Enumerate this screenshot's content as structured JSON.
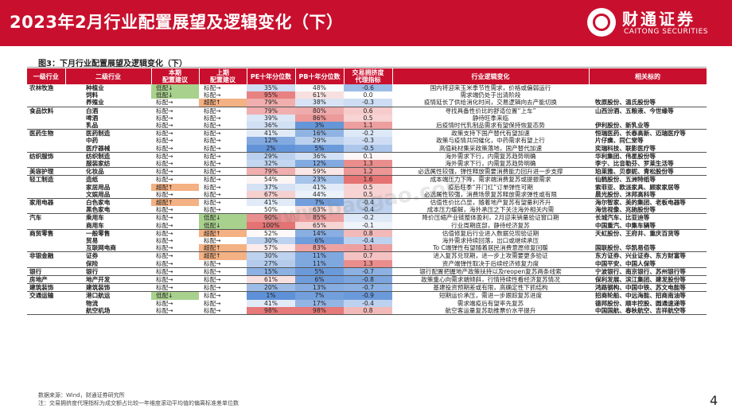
{
  "header": {
    "title": "2023年2月行业配置展望及逻辑变化（下）",
    "logo_cn": "财通证券",
    "logo_en": "CAITONG SECURITIES"
  },
  "figure": {
    "caption": "图3：下月行业配置展望及逻辑变化（下）",
    "columns": [
      "一级行业",
      "二级行业",
      "本期\n配置建议",
      "上期\n配置建议",
      "PE十年分位数",
      "PB十年分位数",
      "交易拥挤度\n代理指标",
      "行业逻辑变化",
      "相关标的"
    ],
    "rows": [
      {
        "l1": "农林牧渔",
        "l2": "种植业",
        "cur": "低配↓",
        "prev": "标配→",
        "pe": "35%",
        "pb": "48%",
        "cr": "-0.6",
        "logic": "国内将迎来玉米季节性需求，价格或偏弱运行",
        "stocks": ""
      },
      {
        "l1": "",
        "l2": "饲料",
        "cur": "低配↓",
        "prev": "标配→",
        "pe": "95%",
        "pb": "61%",
        "cr": "0.0",
        "logic": "需求端仍处于出清阶段",
        "stocks": ""
      },
      {
        "l1": "",
        "l2": "养殖业",
        "cur": "标配→",
        "prev": "超配↑",
        "pe": "79%",
        "pb": "38%",
        "cr": "-0.3",
        "logic": "疫情延长了供给消化时间，交易逻辑向去产能切换",
        "stocks": "牧原股份、温氏股份等"
      },
      {
        "l1": "食品饮料",
        "l2": "白酒",
        "cur": "标配→",
        "prev": "标配→",
        "pe": "79%",
        "pb": "80%",
        "cr": "0.6",
        "logic": "寻找具备性价比的舒适位置“上车”",
        "stocks": "山西汾酒、五粮液、今世缘等"
      },
      {
        "l1": "",
        "l2": "啤酒",
        "cur": "标配→",
        "prev": "标配→",
        "pe": "39%",
        "pb": "86%",
        "cr": "0.5",
        "logic": "静待旺季来临",
        "stocks": ""
      },
      {
        "l1": "",
        "l2": "乳品",
        "cur": "标配→",
        "prev": "标配→",
        "pe": "36%",
        "pb": "3%",
        "cr": "1.1",
        "logic": "后疫情时代乳制品需求有望保持恢复态势",
        "stocks": "伊利股份、新乳业等"
      },
      {
        "l1": "医药生物",
        "l2": "医药制造",
        "cur": "标配→",
        "prev": "标配→",
        "pe": "41%",
        "pb": "16%",
        "cr": "-0.2",
        "logic": "政策支持下国产替代有望加速",
        "stocks": "恒瑞医药、长春高新、迈瑞医疗等"
      },
      {
        "l1": "",
        "l2": "中药",
        "cur": "标配→",
        "prev": "标配→",
        "pe": "12%",
        "pb": "29%",
        "cr": "-0.3",
        "logic": "政策与疫情共同催化，中药需求有望上行",
        "stocks": "片仔癀、同仁堂等"
      },
      {
        "l1": "",
        "l2": "医疗器械",
        "cur": "标配→",
        "prev": "标配→",
        "pe": "2%",
        "pb": "5%",
        "cr": "-0.5",
        "logic": "高值耗材集采政策落地，国产替代加速",
        "stocks": "奕瑞科技、联影医疗等"
      },
      {
        "l1": "纺织服饰",
        "l2": "纺织制造",
        "cur": "标配→",
        "prev": "标配→",
        "pe": "29%",
        "pb": "36%",
        "cr": "0.1",
        "logic": "海外需求下行，内需复苏趋势明确",
        "stocks": "华利集团、伟星股份等"
      },
      {
        "l1": "",
        "l2": "服装家纺",
        "cur": "标配→",
        "prev": "标配→",
        "pe": "32%",
        "pb": "12%",
        "cr": "1.3",
        "logic": "海外需求下行，内需复苏趋势明确",
        "stocks": "李宁、比音勒芬、罗莱生活等"
      },
      {
        "l1": "美容护理",
        "l2": "化妆品",
        "cur": "标配→",
        "prev": "标配→",
        "pe": "79%",
        "pb": "59%",
        "cr": "1.2",
        "logic": "必选属性较强，弹性释放需要消费能力回升进一步支撑",
        "stocks": "珀莱雅、贝泰妮、青松股份等"
      },
      {
        "l1": "轻工制造",
        "l2": "造纸",
        "cur": "标配→",
        "prev": "标配→",
        "pe": "54%",
        "pb": "23%",
        "cr": "1.6",
        "logic": "成本端压力下降，需求端消费复苏或提振需求",
        "stocks": "仙鹤股份、五洲特纸等"
      },
      {
        "l1": "",
        "l2": "家居用品",
        "cur": "超配↑",
        "prev": "标配→",
        "pe": "37%",
        "pb": "41%",
        "cr": "0.5",
        "logic": "疫后旺季“开门红”订单弹性可期",
        "stocks": "索菲亚、欧派家具、顾家家居等"
      },
      {
        "l1": "",
        "l2": "文娱用品",
        "cur": "标配→",
        "prev": "标配→",
        "pe": "67%",
        "pb": "44%",
        "cr": "0.5",
        "logic": "必选属性较强，消费场景复苏释放需求弹性或有限",
        "stocks": "晨光股份、沐邦高科等"
      },
      {
        "l1": "家用电器",
        "l2": "白色家电",
        "cur": "超配↑",
        "prev": "标配→",
        "pe": "41%",
        "pb": "7%",
        "cr": "-0.4",
        "logic": "估值性价比凸显，随着地产复苏有望量利齐升",
        "stocks": "海尔智家、美的集团、老板电器等"
      },
      {
        "l1": "",
        "l2": "黑色家电",
        "cur": "标配→",
        "prev": "标配→",
        "pe": "50%",
        "pb": "63%",
        "cr": "-0.4",
        "logic": "成本压力缓解，海外承压之下关注海外相关内需",
        "stocks": "海信视像、兆驰股份等"
      },
      {
        "l1": "汽车",
        "l2": "乘用车",
        "cur": "标配→",
        "prev": "低配↓",
        "pe": "90%",
        "pb": "85%",
        "cr": "-0.2",
        "logic": "降价压缩产业链整体盈利，2月迎来销量验证窗口期",
        "stocks": "长城汽车、比亚迪等"
      },
      {
        "l1": "",
        "l2": "商用车",
        "cur": "标配→",
        "prev": "低配↓",
        "pe": "100%",
        "pb": "65%",
        "cr": "-0.1",
        "logic": "行业周期底部，静待经济复苏",
        "stocks": "中国重汽、中集车辆等"
      },
      {
        "l1": "商贸零售",
        "l2": "一般零售",
        "cur": "标配→",
        "prev": "超配↑",
        "pe": "52%",
        "pb": "14%",
        "cr": "0.8",
        "logic": "估值修复后行业进入数据兑现验证期",
        "stocks": "天虹股份、王府井、重庆百货等"
      },
      {
        "l1": "",
        "l2": "贸易",
        "cur": "标配→",
        "prev": "标配→",
        "pe": "30%",
        "pb": "6%",
        "cr": "-0.4",
        "logic": "海外需求持续回落，出口或继续承压",
        "stocks": ""
      },
      {
        "l1": "",
        "l2": "互联网电商",
        "cur": "标配→",
        "prev": "超配↑",
        "pe": "57%",
        "pb": "83%",
        "cr": "1.1",
        "logic": "To C端弹性有望随着居民消费意愿修复回暖",
        "stocks": "国联股份、华凯易佰等"
      },
      {
        "l1": "非银金融",
        "l2": "证券",
        "cur": "标配→",
        "prev": "超配↑",
        "pe": "30%",
        "pb": "11%",
        "cr": "0.7",
        "logic": "进入复苏兑现期，进一步上攻需要更多验证",
        "stocks": "东方证券、兴业证券、东方财富等"
      },
      {
        "l1": "",
        "l2": "保险",
        "cur": "标配→",
        "prev": "标配→",
        "pe": "27%",
        "pb": "11%",
        "cr": "1.3",
        "logic": "资产端弹性取决于后续经济修复力度",
        "stocks": "中国平安、中国人保等"
      },
      {
        "l1": "银行",
        "l2": "银行",
        "cur": "标配→",
        "prev": "标配→",
        "pe": "15%",
        "pb": "5%",
        "cr": "-0.7",
        "logic": "银行配置把握地产政策扶持以及reopen复苏两条线索",
        "stocks": "宁波银行、南京银行、苏州银行等"
      },
      {
        "l1": "房地产",
        "l2": "地产开发",
        "cur": "标配→",
        "prev": "标配→",
        "pe": "61%",
        "pb": "6%",
        "cr": "-0.8",
        "logic": "政策重心向需求端倾斜，行情持续性看经济复苏情况",
        "stocks": "保利发展、滨江集团、建发股份等"
      },
      {
        "l1": "建筑装饰",
        "l2": "建筑装饰",
        "cur": "标配→",
        "prev": "标配→",
        "pe": "20%",
        "pb": "13%",
        "cr": "-0.7",
        "logic": "基建投资预期差或有限，高确定性下抓结构",
        "stocks": "鸿路钢构、中国中铁、苏文电能等"
      },
      {
        "l1": "交通运输",
        "l2": "港口航运",
        "cur": "低配↓",
        "prev": "标配→",
        "pe": "1%",
        "pb": "7%",
        "cr": "-0.9",
        "logic": "短期运价承压，需进一步跟踪复苏进度",
        "stocks": "招商轮船、中远海能、招商南油等"
      },
      {
        "l1": "",
        "l2": "物流",
        "cur": "标配→",
        "prev": "标配→",
        "pe": "41%",
        "pb": "17%",
        "cr": "-0.4",
        "logic": "需求端疫后有望率先复苏",
        "stocks": "德邦股份、顺丰控股、圆通速递等"
      },
      {
        "l1": "",
        "l2": "航空机场",
        "cur": "标配→",
        "prev": "标配→",
        "pe": "98%",
        "pb": "98%",
        "cr": "0.8",
        "logic": "航空客运量复苏助推票价水平提升",
        "stocks": "中国国航、春秋航空、吉祥航空等"
      }
    ],
    "legend_colors": {
      "bad_high": "#e57373",
      "good_low": "#5b8fd6",
      "neutral": "#ffffff",
      "overweight": "#f4b183",
      "underweight": "#a9d18e"
    }
  },
  "footer": {
    "source": "数据来源：Wind，财通证券研究所",
    "note": "注：交易拥挤度代理指标为成交额占比较一年维度滚动平均值的偏离标准差单位数"
  },
  "page_number": "4",
  "watermark": "www.baogao.com"
}
